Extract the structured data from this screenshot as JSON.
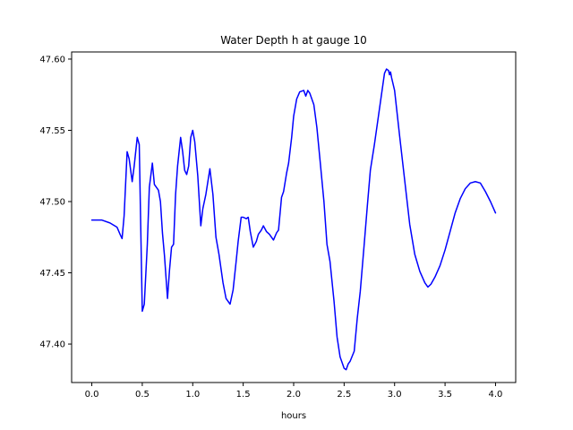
{
  "chart_data": {
    "type": "line",
    "title": "Water Depth h at gauge 10",
    "xlabel": "hours",
    "ylabel": "",
    "xlim": [
      -0.2,
      4.2
    ],
    "ylim": [
      47.373,
      47.605
    ],
    "xticks": [
      0.0,
      0.5,
      1.0,
      1.5,
      2.0,
      2.5,
      3.0,
      3.5,
      4.0
    ],
    "xtick_labels": [
      "0.0",
      "0.5",
      "1.0",
      "1.5",
      "2.0",
      "2.5",
      "3.0",
      "3.5",
      "4.0"
    ],
    "yticks": [
      47.4,
      47.45,
      47.5,
      47.55,
      47.6
    ],
    "ytick_labels": [
      "47.40",
      "47.45",
      "47.50",
      "47.55",
      "47.60"
    ],
    "grid": false,
    "legend": "none",
    "series": [
      {
        "color": "#0000ff",
        "x": [
          0.0,
          0.1,
          0.18,
          0.25,
          0.28,
          0.3,
          0.32,
          0.35,
          0.37,
          0.4,
          0.42,
          0.45,
          0.47,
          0.5,
          0.52,
          0.55,
          0.57,
          0.6,
          0.62,
          0.64,
          0.66,
          0.68,
          0.7,
          0.72,
          0.75,
          0.77,
          0.79,
          0.81,
          0.83,
          0.85,
          0.88,
          0.9,
          0.92,
          0.94,
          0.96,
          0.98,
          1.0,
          1.02,
          1.05,
          1.08,
          1.1,
          1.13,
          1.17,
          1.2,
          1.23,
          1.26,
          1.3,
          1.33,
          1.37,
          1.4,
          1.43,
          1.45,
          1.48,
          1.5,
          1.53,
          1.55,
          1.57,
          1.6,
          1.63,
          1.65,
          1.68,
          1.7,
          1.73,
          1.76,
          1.8,
          1.83,
          1.85,
          1.88,
          1.9,
          1.93,
          1.95,
          1.98,
          2.0,
          2.03,
          2.06,
          2.1,
          2.12,
          2.14,
          2.16,
          2.2,
          2.23,
          2.26,
          2.3,
          2.33,
          2.36,
          2.4,
          2.43,
          2.46,
          2.5,
          2.52,
          2.54,
          2.56,
          2.6,
          2.63,
          2.66,
          2.7,
          2.73,
          2.76,
          2.8,
          2.84,
          2.88,
          2.9,
          2.92,
          2.94,
          2.95,
          2.96,
          2.97,
          3.0,
          3.05,
          3.1,
          3.15,
          3.2,
          3.25,
          3.3,
          3.33,
          3.36,
          3.4,
          3.45,
          3.5,
          3.55,
          3.6,
          3.65,
          3.7,
          3.75,
          3.8,
          3.85,
          3.9,
          3.95,
          4.0
        ],
        "y": [
          47.487,
          47.487,
          47.485,
          47.482,
          47.477,
          47.474,
          47.49,
          47.535,
          47.53,
          47.514,
          47.525,
          47.545,
          47.54,
          47.423,
          47.428,
          47.47,
          47.51,
          47.527,
          47.512,
          47.51,
          47.508,
          47.5,
          47.478,
          47.462,
          47.432,
          47.452,
          47.468,
          47.47,
          47.505,
          47.525,
          47.545,
          47.535,
          47.522,
          47.519,
          47.525,
          47.545,
          47.55,
          47.542,
          47.518,
          47.483,
          47.495,
          47.505,
          47.523,
          47.505,
          47.475,
          47.463,
          47.443,
          47.432,
          47.428,
          47.438,
          47.458,
          47.472,
          47.489,
          47.489,
          47.488,
          47.489,
          47.479,
          47.468,
          47.472,
          47.477,
          47.48,
          47.483,
          47.479,
          47.477,
          47.473,
          47.478,
          47.48,
          47.503,
          47.507,
          47.52,
          47.527,
          47.545,
          47.56,
          47.572,
          47.577,
          47.578,
          47.574,
          47.578,
          47.576,
          47.568,
          47.552,
          47.53,
          47.5,
          47.47,
          47.458,
          47.43,
          47.405,
          47.391,
          47.383,
          47.382,
          47.386,
          47.388,
          47.395,
          47.418,
          47.437,
          47.471,
          47.497,
          47.522,
          47.54,
          47.56,
          47.58,
          47.59,
          47.593,
          47.592,
          47.589,
          47.591,
          47.587,
          47.578,
          47.546,
          47.515,
          47.484,
          47.463,
          47.451,
          47.443,
          47.44,
          47.442,
          47.447,
          47.455,
          47.466,
          47.479,
          47.492,
          47.502,
          47.509,
          47.513,
          47.514,
          47.513,
          47.507,
          47.5,
          47.492
        ]
      }
    ]
  }
}
